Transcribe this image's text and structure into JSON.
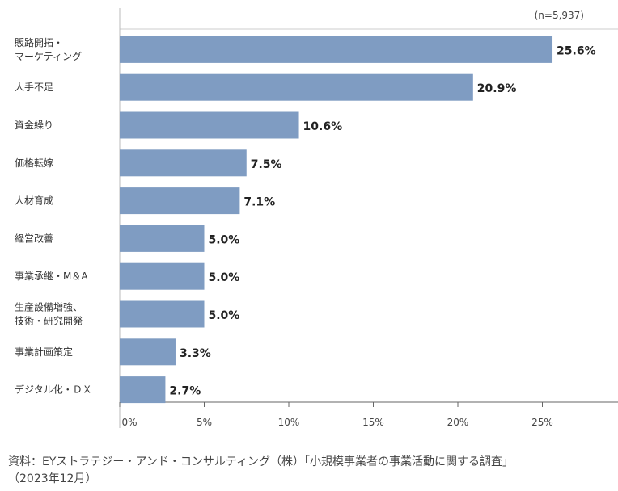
{
  "chart_data": {
    "type": "bar",
    "orientation": "horizontal",
    "categories": [
      "販路開拓・\nマーケティング",
      "人手不足",
      "資金繰り",
      "価格転嫁",
      "人材育成",
      "経営改善",
      "事業承継・M＆A",
      "生産設備増強、\n技術・研究開発",
      "事業計画策定",
      "デジタル化・ＤＸ"
    ],
    "values": [
      25.6,
      20.9,
      10.6,
      7.5,
      7.1,
      5.0,
      5.0,
      5.0,
      3.3,
      2.7
    ],
    "value_labels": [
      "25.6%",
      "20.9%",
      "10.6%",
      "7.5%",
      "7.1%",
      "5.0%",
      "5.0%",
      "5.0%",
      "3.3%",
      "2.7%"
    ],
    "xticks": [
      "0%",
      "5%",
      "10%",
      "15%",
      "20%",
      "25%"
    ],
    "xtick_values": [
      0,
      5,
      10,
      15,
      20,
      25
    ],
    "xlim": [
      0,
      29
    ],
    "grid": false,
    "bar_color": "#7f9cc2",
    "annotation": "(n=5,937)"
  },
  "source": {
    "line1": "資料：EYストラテジー・アンド・コンサルティング（株）「小規模事業者の事業活動に関する調査」",
    "line2": "（2023年12月）"
  }
}
